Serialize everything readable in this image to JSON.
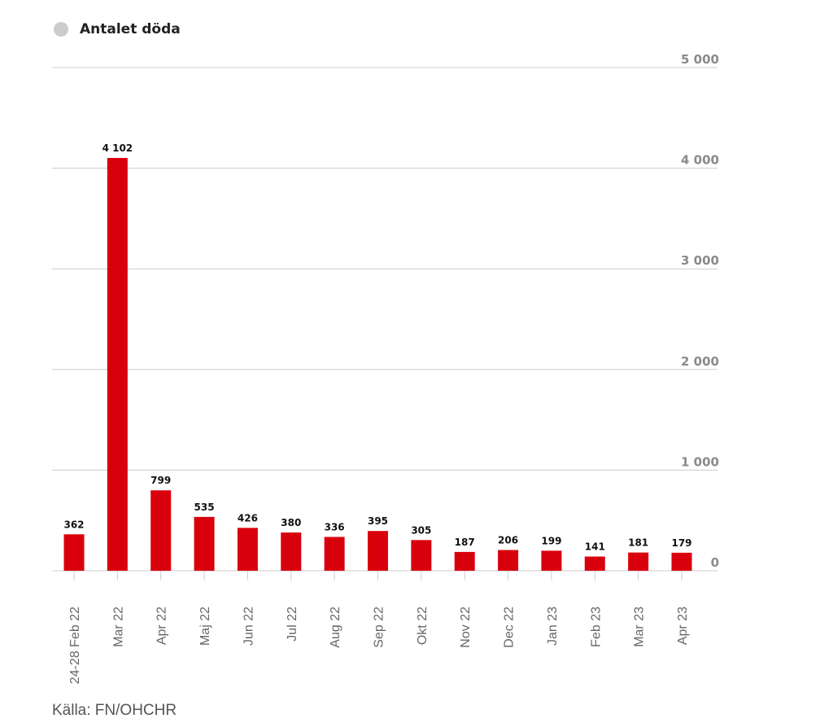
{
  "legend": {
    "label": "Antalet döda"
  },
  "source": "Källa: FN/OHCHR",
  "colors": {
    "bar": "#d9000d",
    "grid": "#cccccc",
    "axis_text": "#8a8a8a",
    "legend_dot": "#cccccc"
  },
  "chart_data": {
    "type": "bar",
    "categories": [
      "24-28 Feb 22",
      "Mar 22",
      "Apr 22",
      "Maj 22",
      "Jun 22",
      "Jul 22",
      "Aug 22",
      "Sep 22",
      "Okt 22",
      "Nov 22",
      "Dec 22",
      "Jan 23",
      "Feb 23",
      "Mar 23",
      "Apr 23"
    ],
    "series": [
      {
        "name": "Antalet döda",
        "values": [
          362,
          4102,
          799,
          535,
          426,
          380,
          336,
          395,
          305,
          187,
          206,
          199,
          141,
          181,
          179
        ]
      }
    ],
    "data_labels": [
      "362",
      "4 102",
      "799",
      "535",
      "426",
      "380",
      "336",
      "395",
      "305",
      "187",
      "206",
      "199",
      "141",
      "181",
      "179"
    ],
    "y_ticks": [
      0,
      1000,
      2000,
      3000,
      4000,
      5000
    ],
    "y_tick_labels": [
      "0",
      "1 000",
      "2 000",
      "3 000",
      "4 000",
      "5 000"
    ],
    "ylim": [
      0,
      5000
    ],
    "y_axis_position": "right",
    "grid": true,
    "legend_position": "top-left"
  }
}
